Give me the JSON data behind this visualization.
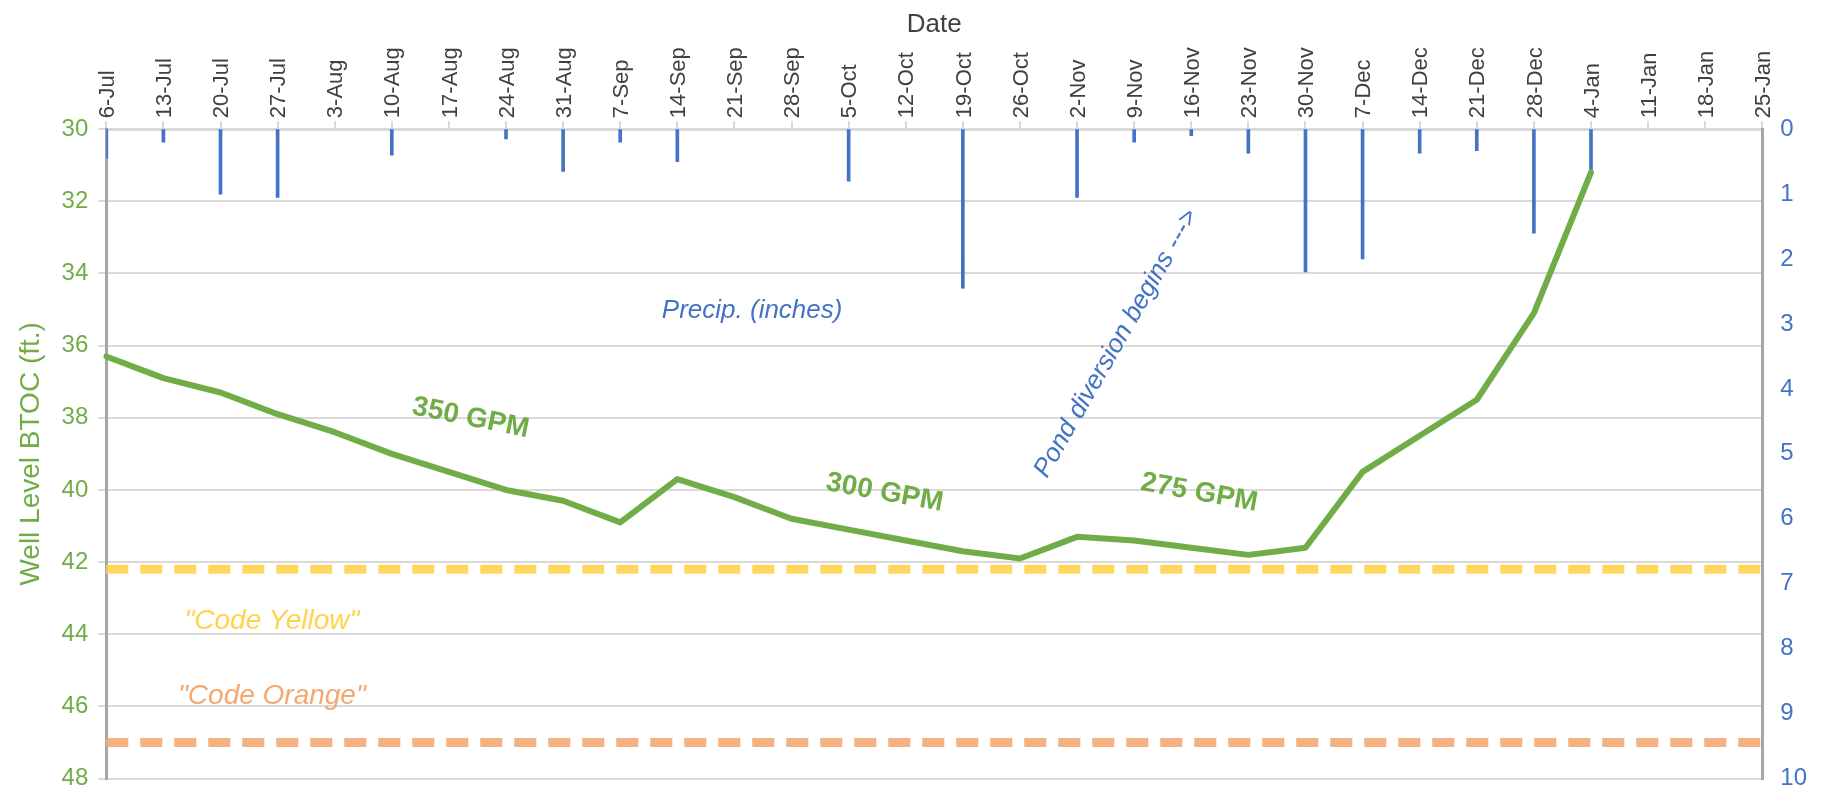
{
  "chart_data": {
    "type": "line",
    "xlabel": "Date",
    "ylabel": "Well Level BTOC (ft.)",
    "categories": [
      "6-Jul",
      "13-Jul",
      "20-Jul",
      "27-Jul",
      "3-Aug",
      "10-Aug",
      "17-Aug",
      "24-Aug",
      "31-Aug",
      "7-Sep",
      "14-Sep",
      "21-Sep",
      "28-Sep",
      "5-Oct",
      "12-Oct",
      "19-Oct",
      "26-Oct",
      "2-Nov",
      "9-Nov",
      "16-Nov",
      "23-Nov",
      "30-Nov",
      "7-Dec",
      "14-Dec",
      "21-Dec",
      "28-Dec",
      "4-Jan",
      "11-Jan",
      "18-Jan",
      "25-Jan"
    ],
    "ylim": [
      48,
      30
    ],
    "yticks": [
      30,
      32,
      34,
      36,
      38,
      40,
      42,
      44,
      46,
      48
    ],
    "y2lim": [
      10,
      0
    ],
    "y2ticks": [
      0,
      1,
      2,
      3,
      4,
      5,
      6,
      7,
      8,
      9,
      10
    ],
    "grid": "y",
    "legend": false,
    "marker": "none",
    "line_style": "solid",
    "series": [
      {
        "type": "bar",
        "axis": "y2",
        "color": "#4472c4",
        "values": [
          0.45,
          0.2,
          1.0,
          1.05,
          null,
          0.4,
          null,
          0.15,
          0.65,
          0.2,
          0.5,
          null,
          null,
          0.8,
          null,
          2.45,
          null,
          1.05,
          0.2,
          0.1,
          0.37,
          2.2,
          2.0,
          0.37,
          0.33,
          1.6,
          0.67,
          null,
          null,
          null
        ]
      },
      {
        "color": "#70ad47",
        "values": [
          36.3,
          36.9,
          37.3,
          37.9,
          38.4,
          39.0,
          39.5,
          40.0,
          40.3,
          40.9,
          39.7,
          40.2,
          40.8,
          41.1,
          41.4,
          41.7,
          41.9,
          41.3,
          41.4,
          41.6,
          41.8,
          41.6,
          39.5,
          38.5,
          37.5,
          35.1,
          31.2,
          null,
          null,
          null
        ]
      }
    ],
    "ref_lines": [
      {
        "axis": "y",
        "value": 42.2,
        "label": "\"Code Yellow\"",
        "color": "#ffd34f",
        "line_style": "dashed"
      },
      {
        "axis": "y",
        "value": 47,
        "label": "\"Code Orange\"",
        "color": "#f4a871",
        "line_style": "dashed"
      }
    ],
    "annotations": [
      "350 GPM",
      "300 GPM",
      "275 GPM",
      "Precip. (inches)",
      "Pond diversion begins --->"
    ]
  }
}
